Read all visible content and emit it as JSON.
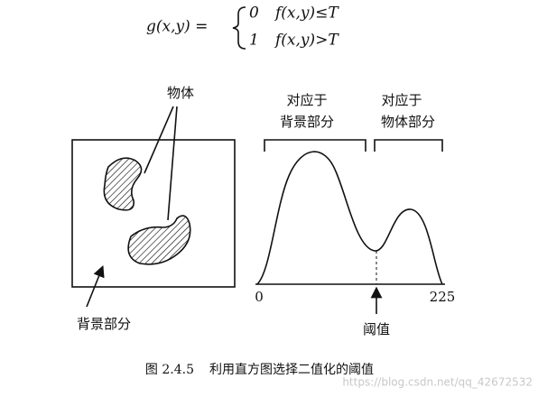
{
  "formula": {
    "lhs": "g(x,y) =",
    "cases": [
      {
        "value": "0",
        "condition": "f(x,y)≤T"
      },
      {
        "value": "1",
        "condition": "f(x,y)>T"
      }
    ]
  },
  "left_panel": {
    "object_label": "物体",
    "background_label": "背景部分"
  },
  "right_panel": {
    "background_bracket": [
      "对应于",
      "背景部分"
    ],
    "object_bracket": [
      "对应于",
      "物体部分"
    ],
    "axis_start": "0",
    "axis_end": "225",
    "threshold_label": "阈值"
  },
  "caption": {
    "number": "图 2.4.5",
    "text": "利用直方图选择二值化的阈值"
  },
  "watermark": "https://blog.csdn.net/qq_42672532"
}
